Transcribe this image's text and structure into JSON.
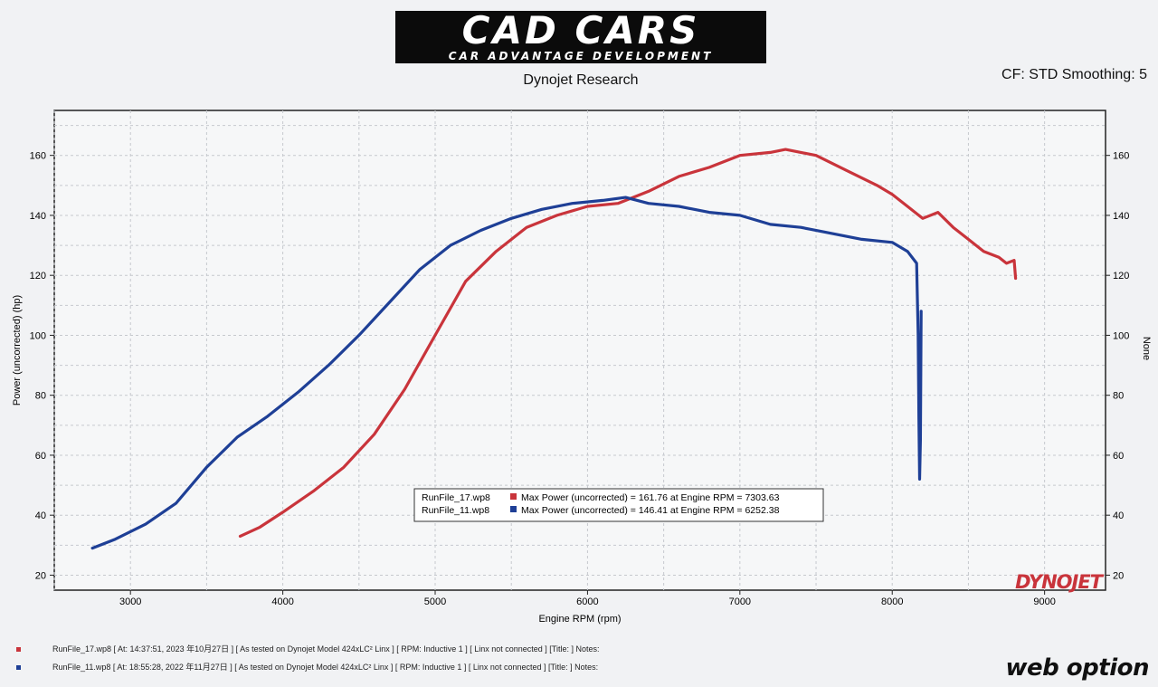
{
  "header": {
    "logo_main": "CAD CARS",
    "logo_sub": "CAR ADVANTAGE DEVELOPMENT",
    "subtitle": "Dynojet Research",
    "cf_smoothing": "CF: STD Smoothing: 5"
  },
  "chart_data": {
    "type": "line",
    "xlabel": "Engine RPM (rpm)",
    "ylabel": "Power (uncorrected) (hp)",
    "ylabel_right": "None",
    "xlim": [
      2500,
      9400
    ],
    "ylim": [
      15,
      175
    ],
    "xticks": [
      3000,
      4000,
      5000,
      6000,
      7000,
      8000,
      9000
    ],
    "yticks": [
      20,
      40,
      60,
      80,
      100,
      120,
      140,
      160
    ],
    "grid": true,
    "watermark": "DYNOJET",
    "legend": {
      "placement": "center",
      "entries": [
        {
          "run": "RunFile_17.wp8",
          "text": "Max Power (uncorrected) = 161.76 at Engine RPM = 7303.63"
        },
        {
          "run": "RunFile_11.wp8",
          "text": "Max Power (uncorrected) = 146.41 at Engine RPM = 6252.38"
        }
      ]
    },
    "series": [
      {
        "name": "RunFile_17.wp8",
        "color": "#c9343b",
        "x": [
          3720,
          3850,
          4000,
          4200,
          4400,
          4600,
          4800,
          5000,
          5200,
          5400,
          5600,
          5800,
          6000,
          6200,
          6400,
          6600,
          6800,
          7000,
          7200,
          7300,
          7500,
          7700,
          7900,
          8000,
          8100,
          8200,
          8300,
          8400,
          8500,
          8600,
          8700,
          8750,
          8800,
          8810
        ],
        "y": [
          33,
          36,
          41,
          48,
          56,
          67,
          82,
          100,
          118,
          128,
          136,
          140,
          143,
          144,
          148,
          153,
          156,
          160,
          161,
          162,
          160,
          155,
          150,
          147,
          143,
          139,
          141,
          136,
          132,
          128,
          126,
          124,
          125,
          119
        ]
      },
      {
        "name": "RunFile_11.wp8",
        "color": "#1e3f96",
        "x": [
          2750,
          2900,
          3100,
          3300,
          3500,
          3700,
          3900,
          4100,
          4300,
          4500,
          4700,
          4900,
          5100,
          5300,
          5500,
          5700,
          5900,
          6100,
          6250,
          6400,
          6600,
          6800,
          7000,
          7200,
          7400,
          7600,
          7800,
          8000,
          8100,
          8160,
          8170,
          8175,
          8180,
          8185,
          8190
        ],
        "y": [
          29,
          32,
          37,
          44,
          56,
          66,
          73,
          81,
          90,
          100,
          111,
          122,
          130,
          135,
          139,
          142,
          144,
          145,
          146,
          144,
          143,
          141,
          140,
          137,
          136,
          134,
          132,
          131,
          128,
          124,
          100,
          72,
          52,
          65,
          108
        ]
      }
    ]
  },
  "footer": {
    "line1": "RunFile_17.wp8  [  At:  14:37:51,  2023 年10月27日  ]  [ As tested on Dynojet Model 424xLC² Linx  ]  [  RPM:  Inductive 1  ]  [  Linx not connected  ]  [Title:  ]   Notes:",
    "line2": "RunFile_11.wp8  [  At:  18:55:28,  2022 年11月27日  ]  [ As tested on Dynojet Model 424xLC² Linx  ]  [  RPM:  Inductive 1  ]  [  Linx not connected  ]  [Title:  ]   Notes:",
    "line1_color": "#c9343b",
    "line2_color": "#1e3f96",
    "brand": "web option"
  }
}
